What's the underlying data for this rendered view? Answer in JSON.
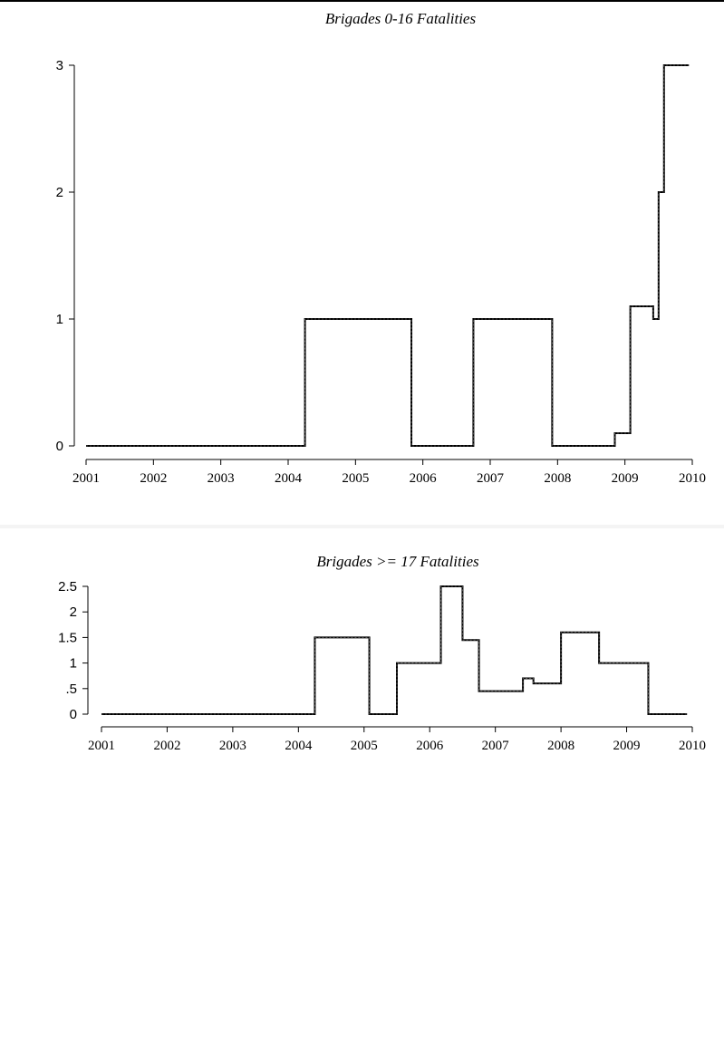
{
  "chart_data": [
    {
      "type": "line",
      "title": "Brigades 0-16 Fatalities",
      "xlabel": "",
      "ylabel": "",
      "xlim": [
        2001,
        2010
      ],
      "ylim": [
        0,
        3
      ],
      "x_ticks": [
        2001,
        2002,
        2003,
        2004,
        2005,
        2006,
        2007,
        2008,
        2009,
        2010
      ],
      "y_ticks": [
        {
          "value": 0,
          "label": "0"
        },
        {
          "value": 1,
          "label": "1"
        },
        {
          "value": 2,
          "label": "2"
        },
        {
          "value": 3,
          "label": "3"
        }
      ],
      "grid": false,
      "series": [
        {
          "step": "post",
          "x": [
            2001,
            2004.25,
            2005.83,
            2006.75,
            2007.92,
            2008.85,
            2009.08,
            2009.42,
            2009.5,
            2009.58,
            2009.95
          ],
          "y": [
            0,
            1,
            0,
            1,
            0,
            0.1,
            1.1,
            1,
            2,
            3,
            3
          ]
        }
      ]
    },
    {
      "type": "line",
      "title": "Brigades >= 17 Fatalities",
      "xlabel": "",
      "ylabel": "",
      "xlim": [
        2001,
        2010
      ],
      "ylim": [
        0,
        2.5
      ],
      "x_ticks": [
        2001,
        2002,
        2003,
        2004,
        2005,
        2006,
        2007,
        2008,
        2009,
        2010
      ],
      "y_ticks": [
        {
          "value": 0,
          "label": "0"
        },
        {
          "value": 0.5,
          "label": ".5"
        },
        {
          "value": 1,
          "label": "1"
        },
        {
          "value": 1.5,
          "label": "1.5"
        },
        {
          "value": 2,
          "label": "2"
        },
        {
          "value": 2.5,
          "label": "2.5"
        }
      ],
      "grid": false,
      "series": [
        {
          "step": "post",
          "x": [
            2001,
            2004.25,
            2005.08,
            2005.5,
            2006.17,
            2006.5,
            2006.75,
            2007.42,
            2007.58,
            2008,
            2008.58,
            2009.33,
            2009.92
          ],
          "y": [
            0,
            1.5,
            0,
            1,
            2.5,
            1.45,
            0.45,
            0.7,
            0.6,
            1.6,
            1,
            0,
            0
          ]
        }
      ]
    }
  ]
}
